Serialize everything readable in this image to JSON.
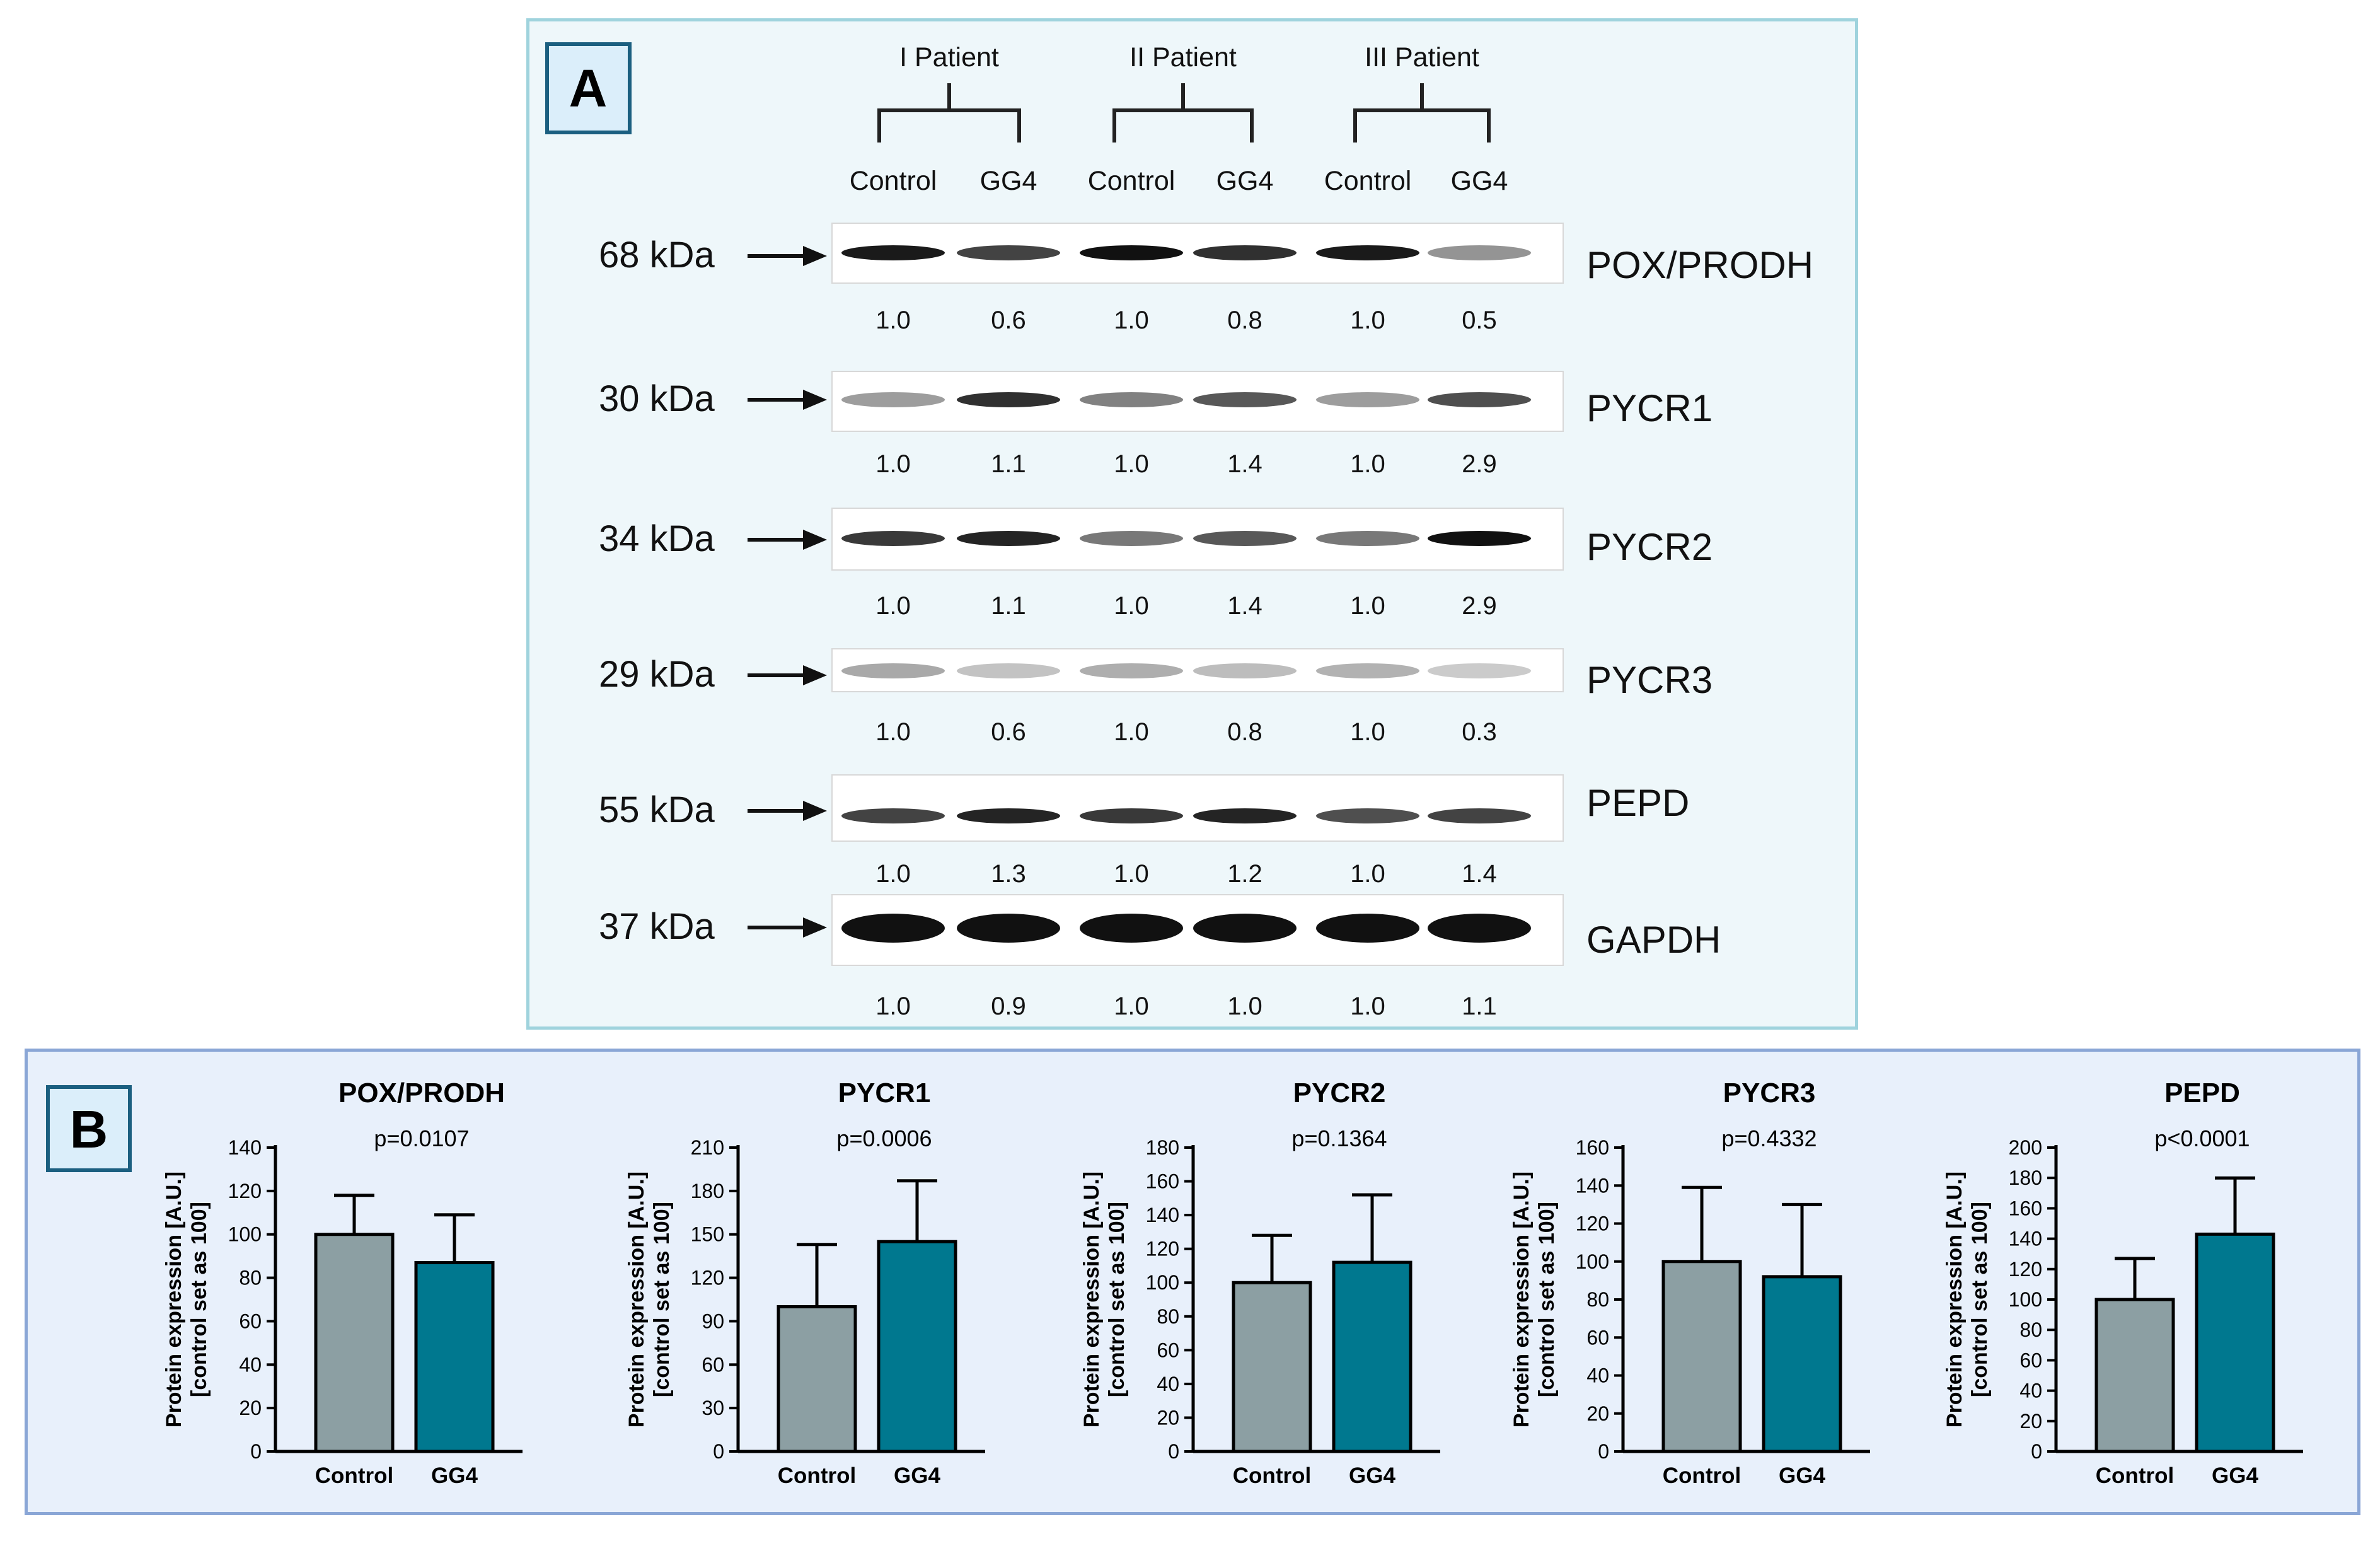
{
  "panel_a": {
    "label": "A",
    "patients": [
      "I Patient",
      "II Patient",
      "III Patient"
    ],
    "lanes": [
      "Control",
      "GG4",
      "Control",
      "GG4",
      "Control",
      "GG4"
    ],
    "blots": [
      {
        "kda": "68 kDa",
        "protein": "POX/PRODH",
        "values": [
          "1.0",
          "0.6",
          "1.0",
          "0.8",
          "1.0",
          "0.5"
        ],
        "intensity": [
          0.95,
          0.75,
          1.0,
          0.85,
          0.95,
          0.35
        ]
      },
      {
        "kda": "30 kDa",
        "protein": "PYCR1",
        "values": [
          "1.0",
          "1.1",
          "1.0",
          "1.4",
          "1.0",
          "2.9"
        ],
        "intensity": [
          0.3,
          0.85,
          0.45,
          0.65,
          0.3,
          0.7
        ]
      },
      {
        "kda": "34 kDa",
        "protein": "PYCR2",
        "values": [
          "1.0",
          "1.1",
          "1.0",
          "1.4",
          "1.0",
          "2.9"
        ],
        "intensity": [
          0.8,
          0.9,
          0.5,
          0.65,
          0.5,
          1.0
        ]
      },
      {
        "kda": "29 kDa",
        "protein": "PYCR3",
        "values": [
          "1.0",
          "0.6",
          "1.0",
          "0.8",
          "1.0",
          "0.3"
        ],
        "intensity": [
          0.25,
          0.12,
          0.22,
          0.15,
          0.2,
          0.08
        ]
      },
      {
        "kda": "55 kDa",
        "protein": "PEPD",
        "values": [
          "1.0",
          "1.3",
          "1.0",
          "1.2",
          "1.0",
          "1.4"
        ],
        "intensity": [
          0.75,
          0.9,
          0.8,
          0.9,
          0.7,
          0.75
        ]
      },
      {
        "kda": "37 kDa",
        "protein": "GAPDH",
        "values": [
          "1.0",
          "0.9",
          "1.0",
          "1.0",
          "1.0",
          "1.1"
        ],
        "intensity": [
          1.0,
          1.0,
          1.0,
          1.0,
          1.0,
          1.0
        ]
      }
    ]
  },
  "panel_b": {
    "label": "B",
    "colors": {
      "control": "#8c9fa3",
      "gg4": "#00788f"
    }
  },
  "chart_data": [
    {
      "type": "bar",
      "title": "POX/PRODH",
      "annotation": "p=0.0107",
      "categories": [
        "Control",
        "GG4"
      ],
      "values": [
        100,
        87
      ],
      "error": [
        18,
        22
      ],
      "ylabel": "Protein expression [A.U.] [control set as 100]",
      "ylim": [
        0,
        140
      ],
      "yticks": [
        0,
        20,
        40,
        60,
        80,
        100,
        120,
        140
      ]
    },
    {
      "type": "bar",
      "title": "PYCR1",
      "annotation": "p=0.0006",
      "categories": [
        "Control",
        "GG4"
      ],
      "values": [
        100,
        145
      ],
      "error": [
        43,
        42
      ],
      "ylabel": "Protein expression [A.U.] [control set as 100]",
      "ylim": [
        0,
        210
      ],
      "yticks": [
        0,
        30,
        60,
        90,
        120,
        150,
        180,
        210
      ]
    },
    {
      "type": "bar",
      "title": "PYCR2",
      "annotation": "p=0.1364",
      "categories": [
        "Control",
        "GG4"
      ],
      "values": [
        100,
        112
      ],
      "error": [
        28,
        40
      ],
      "ylabel": "Protein expression [A.U.] [control set as 100]",
      "ylim": [
        0,
        180
      ],
      "yticks": [
        0,
        20,
        40,
        60,
        80,
        100,
        120,
        140,
        160,
        180
      ]
    },
    {
      "type": "bar",
      "title": "PYCR3",
      "annotation": "p=0.4332",
      "categories": [
        "Control",
        "GG4"
      ],
      "values": [
        100,
        92
      ],
      "error": [
        39,
        38
      ],
      "ylabel": "Protein expression [A.U.] [control set as 100]",
      "ylim": [
        0,
        160
      ],
      "yticks": [
        0,
        20,
        40,
        60,
        80,
        100,
        120,
        140,
        160
      ]
    },
    {
      "type": "bar",
      "title": "PEPD",
      "annotation": "p<0.0001",
      "categories": [
        "Control",
        "GG4"
      ],
      "values": [
        100,
        143
      ],
      "error": [
        27,
        37
      ],
      "ylabel": "Protein expression [A.U.] [control set as 100]",
      "ylim": [
        0,
        200
      ],
      "yticks": [
        0,
        20,
        40,
        60,
        80,
        100,
        120,
        140,
        160,
        180,
        200
      ]
    }
  ]
}
